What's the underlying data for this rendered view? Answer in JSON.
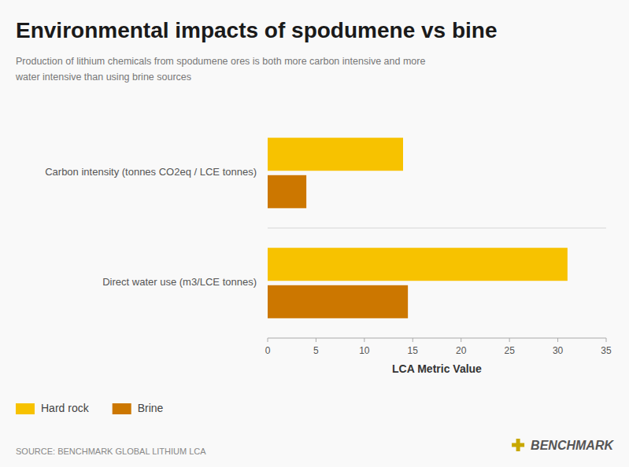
{
  "chart_data": {
    "type": "bar",
    "orientation": "horizontal",
    "title": "Environmental impacts of spodumene vs bine",
    "subtitle": "Production of lithium chemicals from spodumene ores is both more carbon intensive and more\nwater intensive than using brine sources",
    "categories": [
      "Carbon intensity (tonnes CO2eq / LCE tonnes)",
      "Direct water use (m3/LCE tonnes)"
    ],
    "series": [
      {
        "name": "Hard rock",
        "color": "#F7C200",
        "values": [
          14,
          31
        ]
      },
      {
        "name": "Brine",
        "color": "#CC7700",
        "values": [
          4,
          14.5
        ]
      }
    ],
    "xlabel": "LCA Metric Value",
    "xlim": [
      0,
      35
    ],
    "xticks": [
      0,
      5,
      10,
      15,
      20,
      25,
      30,
      35
    ],
    "grid": false,
    "legend": "bottom-left",
    "annotations": [
      "SOURCE: BENCHMARK GLOBAL LITHIUM LCA",
      "BENCHMARK"
    ]
  }
}
